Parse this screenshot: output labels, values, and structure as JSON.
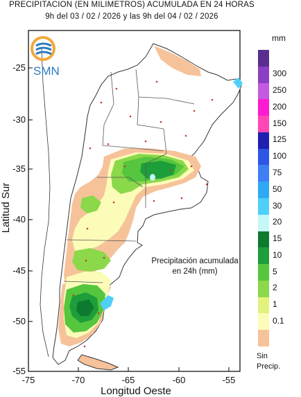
{
  "title_line1": "PRECIPITACION (EN MILIMETROS) ACUMULADA EN 24 HORAS",
  "title_line2": "9h del 03 / 02 / 2026  y las 9h del 04 / 02 / 2026",
  "logo_text": "SMN",
  "annotation_line1": "Precipitación acumulada",
  "annotation_line2": "en 24h (mm)",
  "x_axis": {
    "title": "Longitud Oeste",
    "ticks": [
      "-75",
      "-70",
      "-65",
      "-60",
      "-55"
    ]
  },
  "y_axis": {
    "title": "Latitud Sur",
    "ticks": [
      "-25",
      "-30",
      "-35",
      "-40",
      "-45",
      "-50",
      "-55"
    ]
  },
  "legend": {
    "unit": "mm",
    "labels": [
      "300",
      "250",
      "200",
      "150",
      "125",
      "100",
      "75",
      "50",
      "30",
      "20",
      "15",
      "10",
      "5",
      "2",
      "1",
      "0.1"
    ],
    "no_precip_label_line1": "Sin",
    "no_precip_label_line2": "Precip.",
    "colors": [
      "#5a2d91",
      "#8a3fc4",
      "#c45ae0",
      "#ff1ad1",
      "#ff47b5",
      "#1f1fb0",
      "#2f55e6",
      "#3f7ff5",
      "#2fa8f5",
      "#4fd0f8",
      "#c4f7f5",
      "#0e7a2f",
      "#1d9e3a",
      "#55c63e",
      "#8bd84a",
      "#e2f27c",
      "#fbfcb8",
      "#f6c29a"
    ]
  }
}
